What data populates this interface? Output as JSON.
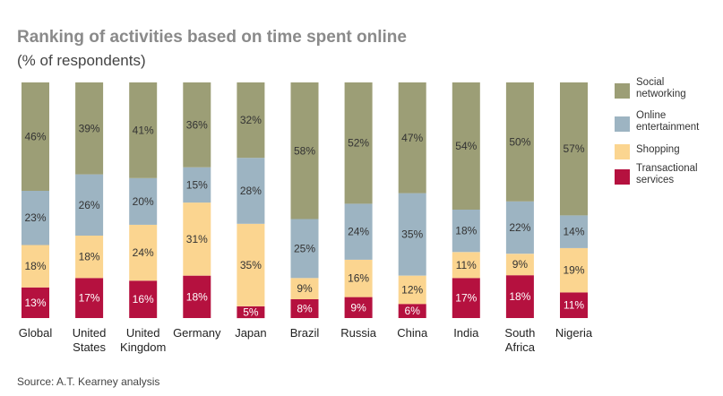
{
  "header": {
    "title": "Ranking of activities based on time spent online",
    "subtitle": "(% of respondents)"
  },
  "footer": {
    "source": "Source: A.T. Kearney analysis"
  },
  "colors": {
    "social": "#9c9e76",
    "entertainment": "#9db4c2",
    "shopping": "#fbd590",
    "transactional": "#b5113f"
  },
  "chart_data": {
    "type": "bar",
    "stacked": true,
    "normalized": true,
    "categories": [
      "Global",
      "United\nStates",
      "United\nKingdom",
      "Germany",
      "Japan",
      "Brazil",
      "Russia",
      "China",
      "India",
      "South\nAfrica",
      "Nigeria"
    ],
    "series": [
      {
        "name": "Transactional\nservices",
        "key": "transactional",
        "values": [
          13,
          17,
          16,
          18,
          5,
          8,
          9,
          6,
          17,
          18,
          11
        ]
      },
      {
        "name": "Shopping",
        "key": "shopping",
        "values": [
          18,
          18,
          24,
          31,
          35,
          9,
          16,
          12,
          11,
          9,
          19
        ]
      },
      {
        "name": "Online\nentertainment",
        "key": "entertainment",
        "values": [
          23,
          26,
          20,
          15,
          28,
          25,
          24,
          35,
          18,
          22,
          14
        ]
      },
      {
        "name": "Social\nnetworking",
        "key": "social",
        "values": [
          46,
          39,
          41,
          36,
          32,
          58,
          52,
          47,
          54,
          50,
          57
        ]
      }
    ],
    "legend_order": [
      "social",
      "entertainment",
      "shopping",
      "transactional"
    ],
    "data_label_suffix": "%",
    "legend": "right"
  }
}
